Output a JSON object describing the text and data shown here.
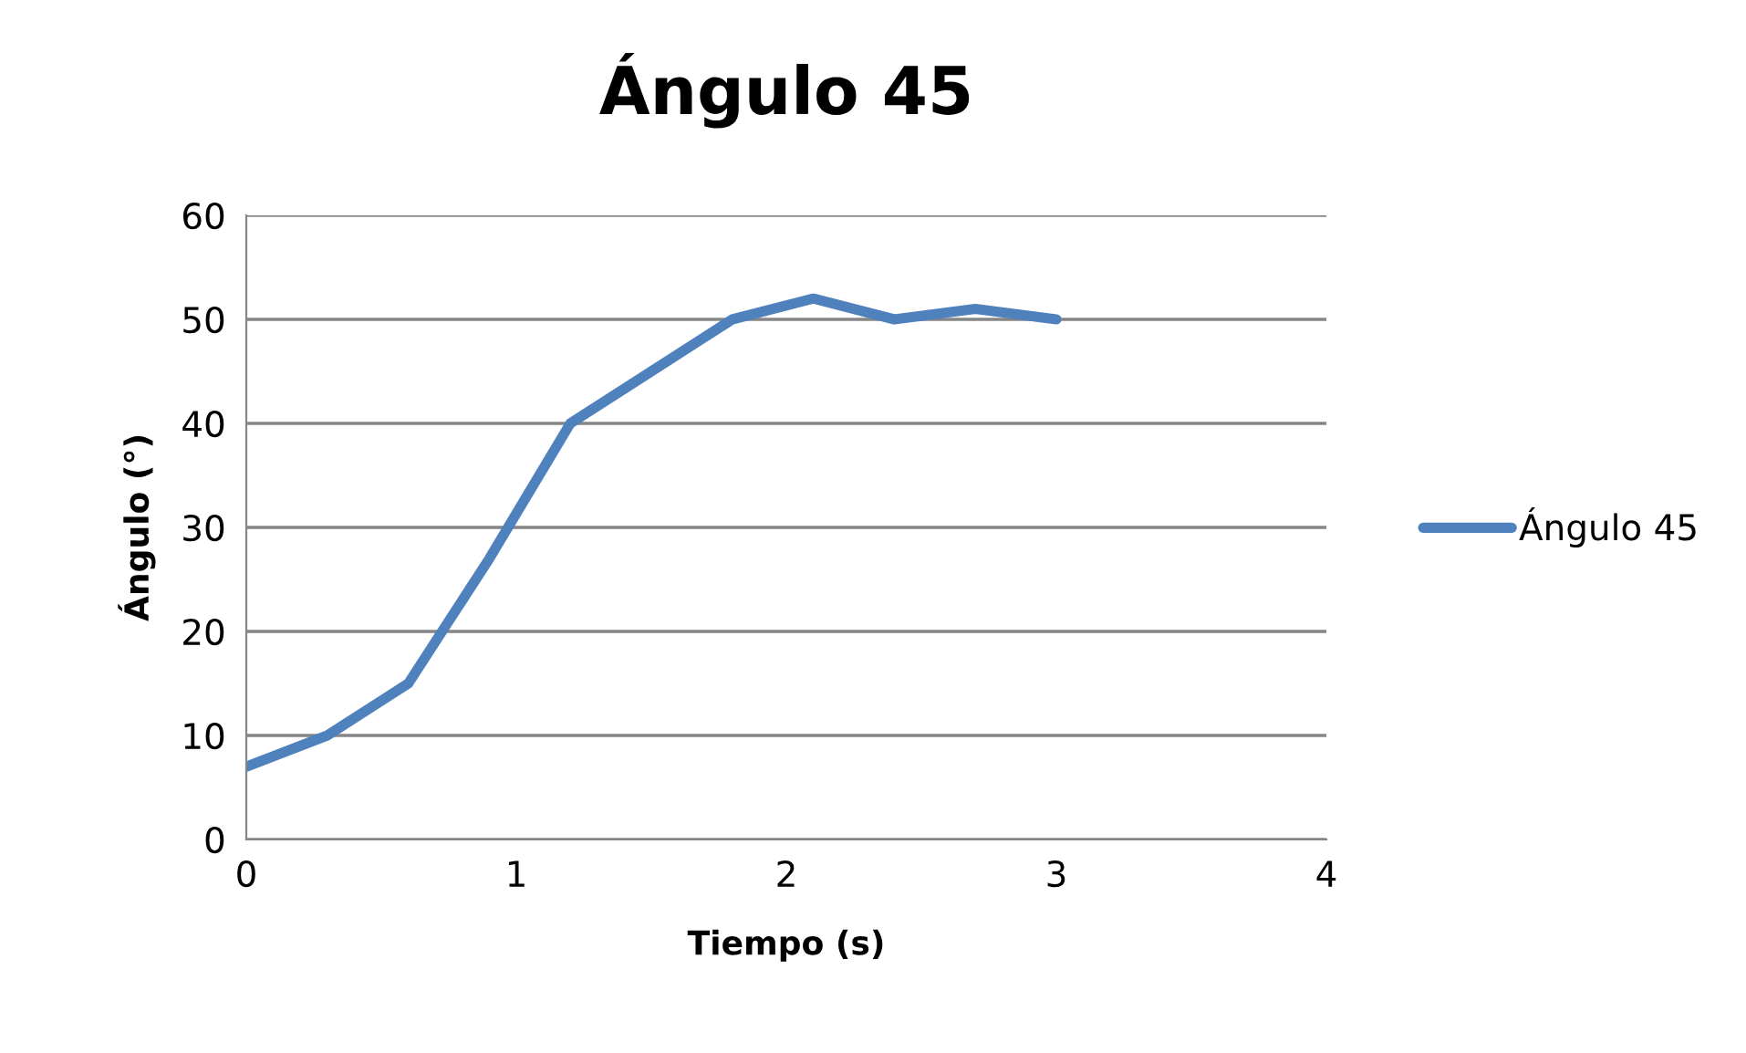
{
  "chart_data": {
    "type": "line",
    "title": "Ángulo 45",
    "xlabel": "Tiempo (s)",
    "ylabel": "Ángulo (°)",
    "x": [
      0,
      0.3,
      0.6,
      0.9,
      1.2,
      1.5,
      1.8,
      2.1,
      2.4,
      2.7,
      3.0
    ],
    "series": [
      {
        "name": "Ángulo 45",
        "color": "#4f81bd",
        "values": [
          7,
          10,
          15,
          27,
          40,
          45,
          50,
          52,
          50,
          51,
          50
        ]
      }
    ],
    "xlim": [
      0,
      4
    ],
    "xticks": [
      0,
      1,
      2,
      3,
      4
    ],
    "ylim": [
      0,
      60
    ],
    "yticks": [
      0,
      10,
      20,
      30,
      40,
      50,
      60
    ],
    "grid": "y",
    "legend": "right",
    "marker": "none",
    "line_style": "solid"
  }
}
